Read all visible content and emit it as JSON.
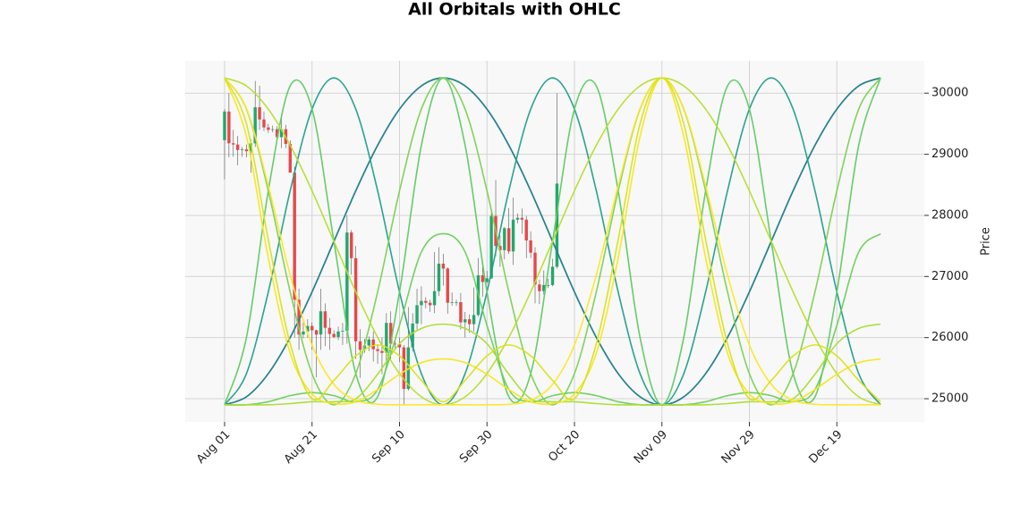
{
  "chart_data": {
    "type": "candlestick",
    "title": "All Orbitals with OHLC",
    "ylabel": "Price",
    "up_color": "#22a86c",
    "down_color": "#e8474a",
    "grid": true,
    "xlim": [
      "Jul 23",
      "Jan 08"
    ],
    "xticks": [
      "Aug 01",
      "Aug 21",
      "Sep 10",
      "Sep 30",
      "Oct 20",
      "Nov 09",
      "Nov 29",
      "Dec 19"
    ],
    "ylim": [
      24620,
      30530
    ],
    "yticks": [
      25000,
      26000,
      27000,
      28000,
      29000,
      30000
    ],
    "x": [
      "Aug 01",
      "Aug 02",
      "Aug 03",
      "Aug 04",
      "Aug 05",
      "Aug 06",
      "Aug 07",
      "Aug 08",
      "Aug 09",
      "Aug 10",
      "Aug 11",
      "Aug 12",
      "Aug 13",
      "Aug 14",
      "Aug 15",
      "Aug 16",
      "Aug 17",
      "Aug 18",
      "Aug 19",
      "Aug 20",
      "Aug 21",
      "Aug 22",
      "Aug 23",
      "Aug 24",
      "Aug 25",
      "Aug 26",
      "Aug 27",
      "Aug 28",
      "Aug 29",
      "Aug 30",
      "Aug 31",
      "Sep 01",
      "Sep 02",
      "Sep 03",
      "Sep 04",
      "Sep 05",
      "Sep 06",
      "Sep 07",
      "Sep 08",
      "Sep 09",
      "Sep 10",
      "Sep 11",
      "Sep 12",
      "Sep 13",
      "Sep 14",
      "Sep 15",
      "Sep 16",
      "Sep 17",
      "Sep 18",
      "Sep 19",
      "Sep 20",
      "Sep 21",
      "Sep 22",
      "Sep 23",
      "Sep 24",
      "Sep 25",
      "Sep 26",
      "Sep 27",
      "Sep 28",
      "Sep 29",
      "Sep 30",
      "Oct 01",
      "Oct 02",
      "Oct 03",
      "Oct 04",
      "Oct 05",
      "Oct 06",
      "Oct 07",
      "Oct 08",
      "Oct 09",
      "Oct 10",
      "Oct 11",
      "Oct 12",
      "Oct 13",
      "Oct 14",
      "Oct 15",
      "Oct 16"
    ],
    "open": [
      29230,
      29700,
      29180,
      29160,
      29070,
      29080,
      29050,
      29180,
      29770,
      29570,
      29440,
      29400,
      29410,
      29280,
      29410,
      29170,
      28700,
      26620,
      26050,
      26100,
      26190,
      26120,
      26050,
      26430,
      26160,
      26060,
      26010,
      26100,
      26110,
      27720,
      27300,
      25940,
      25800,
      25870,
      25970,
      25810,
      25780,
      25750,
      26240,
      25900,
      25890,
      25840,
      25160,
      25840,
      26230,
      26530,
      26600,
      26570,
      26530,
      26760,
      27210,
      27130,
      26570,
      26580,
      26580,
      26250,
      26300,
      26220,
      26370,
      27020,
      26910,
      26970,
      27990,
      27500,
      27430,
      27790,
      27410,
      27930,
      27960,
      27930,
      27590,
      27390,
      26870,
      26760,
      26860,
      26860,
      27160
    ],
    "high": [
      29740,
      30000,
      29400,
      29300,
      29120,
      29160,
      29250,
      30200,
      30120,
      29700,
      29500,
      29470,
      29460,
      29650,
      29480,
      29230,
      28800,
      26800,
      26250,
      26300,
      26250,
      26130,
      26800,
      26560,
      26320,
      26120,
      26180,
      26240,
      28000,
      27760,
      27500,
      26140,
      25980,
      26020,
      26100,
      25880,
      26000,
      26400,
      26430,
      25940,
      26000,
      25880,
      26500,
      26400,
      26800,
      26840,
      26660,
      26620,
      27400,
      27480,
      27370,
      27150,
      26740,
      26620,
      26730,
      26420,
      26380,
      26820,
      27300,
      27230,
      27090,
      28070,
      28580,
      27670,
      27810,
      28120,
      28290,
      28030,
      28110,
      27990,
      27740,
      27480,
      26950,
      27100,
      26960,
      27290,
      30000
    ],
    "low": [
      28590,
      28950,
      28960,
      28820,
      28960,
      28950,
      28700,
      29120,
      29400,
      29380,
      29350,
      29360,
      29250,
      29100,
      29100,
      28720,
      26000,
      25800,
      25990,
      26000,
      25800,
      25350,
      25800,
      25860,
      25800,
      25990,
      25960,
      25880,
      25900,
      27030,
      25650,
      25340,
      25750,
      25780,
      25610,
      25570,
      25400,
      25620,
      25650,
      25800,
      25600,
      24900,
      25130,
      25770,
      26130,
      26220,
      26480,
      26420,
      26400,
      26680,
      26850,
      26390,
      26520,
      26520,
      26130,
      26000,
      26080,
      26100,
      26340,
      26670,
      26890,
      26960,
      27330,
      27160,
      27280,
      27370,
      27190,
      27870,
      27700,
      27300,
      27300,
      26560,
      26550,
      26700,
      26810,
      26840,
      27130
    ],
    "close": [
      29700,
      29180,
      29160,
      29070,
      29080,
      29050,
      29180,
      29770,
      29570,
      29440,
      29400,
      29410,
      29280,
      29410,
      29170,
      28700,
      26620,
      26050,
      26100,
      26190,
      26120,
      26050,
      26430,
      26160,
      26060,
      26010,
      26100,
      26110,
      27720,
      27300,
      25940,
      25800,
      25870,
      25970,
      25810,
      25780,
      25750,
      26240,
      25900,
      25890,
      25840,
      25160,
      25840,
      26230,
      26530,
      26600,
      26570,
      26530,
      26760,
      27210,
      27130,
      26570,
      26580,
      26580,
      26250,
      26300,
      26220,
      26370,
      27020,
      26910,
      26970,
      27990,
      27500,
      27430,
      27790,
      27410,
      27930,
      27960,
      27930,
      27590,
      27390,
      26870,
      26760,
      26860,
      26860,
      27160,
      28520
    ],
    "overlay": {
      "type": "line",
      "x": [
        "Aug 01",
        "Aug 06",
        "Aug 11",
        "Aug 16",
        "Aug 21",
        "Aug 26",
        "Aug 31",
        "Sep 05",
        "Sep 10",
        "Sep 15",
        "Sep 20",
        "Sep 25",
        "Sep 30",
        "Oct 05",
        "Oct 10",
        "Oct 15",
        "Oct 20",
        "Oct 25",
        "Oct 30",
        "Nov 04",
        "Nov 09",
        "Nov 14",
        "Nov 19",
        "Nov 24",
        "Nov 29",
        "Dec 04",
        "Dec 09",
        "Dec 14",
        "Dec 19",
        "Dec 24",
        "Dec 29"
      ],
      "series": [
        {
          "color": "#2c728e",
          "values": [
            24900,
            25031,
            25411,
            26003,
            26748,
            27575,
            28402,
            29147,
            29739,
            30119,
            30250,
            30119,
            29739,
            29147,
            28402,
            27575,
            26748,
            26003,
            25411,
            25031,
            24900,
            25031,
            25411,
            26003,
            26748,
            27575,
            28402,
            29147,
            29739,
            30119,
            30250
          ]
        },
        {
          "color": "#25858e",
          "values": [
            24900,
            25031,
            25411,
            26003,
            26748,
            27575,
            28402,
            29147,
            29739,
            30119,
            30250,
            30119,
            29739,
            29147,
            28402,
            27575,
            26748,
            26003,
            25411,
            25031,
            24900,
            25031,
            25411,
            26003,
            26748,
            27575,
            28402,
            29147,
            29739,
            30119,
            30250
          ]
        },
        {
          "color": "#1f9e89",
          "values": [
            24900,
            25411,
            26748,
            28402,
            29739,
            30250,
            29739,
            28402,
            26748,
            25411,
            24900,
            25411,
            26748,
            28402,
            29739,
            30250,
            29739,
            28402,
            26748,
            25411,
            24900,
            25411,
            26748,
            28402,
            29739,
            30250,
            29739,
            28402,
            26748,
            25411,
            24900
          ]
        },
        {
          "color": "#5ec962",
          "values": [
            24900,
            26003,
            28402,
            30119,
            29739,
            27575,
            25411,
            25031,
            26748,
            29147,
            30250,
            29147,
            26748,
            25031,
            25411,
            27575,
            29739,
            30119,
            28402,
            26003,
            24900,
            26003,
            28402,
            30119,
            29739,
            27575,
            25411,
            25031,
            26748,
            29147,
            30250
          ]
        },
        {
          "color": "#7ad151",
          "values": [
            30250,
            29739,
            28402,
            26748,
            25411,
            24900,
            25411,
            26748,
            28402,
            29739,
            30250,
            29739,
            28402,
            26748,
            25411,
            24900,
            25411,
            26748,
            28402,
            29739,
            30250,
            29739,
            28402,
            26748,
            25411,
            24900,
            25411,
            26748,
            28402,
            29739,
            30250
          ]
        },
        {
          "color": "#b5de2b",
          "values": [
            30250,
            30119,
            29739,
            29147,
            28402,
            27575,
            26748,
            26003,
            25411,
            25031,
            24900,
            25031,
            25411,
            26003,
            26748,
            27575,
            28402,
            29147,
            29739,
            30119,
            30250,
            30119,
            29739,
            29147,
            28402,
            27575,
            26748,
            26003,
            25411,
            25031,
            24900
          ]
        },
        {
          "color": "#6ccd5a",
          "values": [
            24900,
            24900,
            24950,
            25050,
            25100,
            25050,
            24950,
            25150,
            26200,
            27400,
            27700,
            27400,
            26200,
            25150,
            24950,
            25050,
            25100,
            25050,
            24950,
            24900,
            24900,
            24900,
            24950,
            25050,
            25100,
            25050,
            24950,
            25150,
            26200,
            27400,
            27700
          ]
        },
        {
          "color": "#aadc32",
          "values": [
            24900,
            24900,
            24900,
            24920,
            24950,
            24950,
            25000,
            25400,
            25900,
            26150,
            26220,
            26150,
            25900,
            25400,
            25000,
            24950,
            24950,
            24920,
            24900,
            24900,
            24900,
            24900,
            24900,
            24920,
            24950,
            24950,
            25000,
            25400,
            25900,
            26150,
            26220
          ]
        },
        {
          "color": "#fde725",
          "values": [
            30250,
            29747,
            28485,
            27024,
            25879,
            25234,
            24976,
            24909,
            24900,
            24900,
            24900,
            24900,
            24900,
            24909,
            24976,
            25234,
            25879,
            27024,
            28485,
            29747,
            30250,
            29747,
            28485,
            27024,
            25879,
            25234,
            24976,
            24909,
            24900,
            24900,
            24900
          ]
        },
        {
          "color": "#f5e61f",
          "values": [
            30250,
            29292,
            27302,
            25745,
            25079,
            24921,
            24950,
            25150,
            25400,
            25590,
            25650,
            25590,
            25400,
            25150,
            24950,
            24921,
            25079,
            25745,
            27302,
            29292,
            30250,
            29292,
            27302,
            25745,
            25079,
            24921,
            24950,
            25150,
            25400,
            25590,
            25650
          ]
        },
        {
          "color": "#d8e219",
          "values": [
            30250,
            29500,
            27600,
            25900,
            25000,
            25300,
            25700,
            25880,
            25700,
            25300,
            24950,
            25300,
            25700,
            25880,
            25700,
            25300,
            25000,
            25900,
            27600,
            29500,
            30250,
            29500,
            27600,
            25900,
            25000,
            25300,
            25700,
            25880,
            25700,
            25300,
            24950
          ]
        }
      ]
    }
  }
}
